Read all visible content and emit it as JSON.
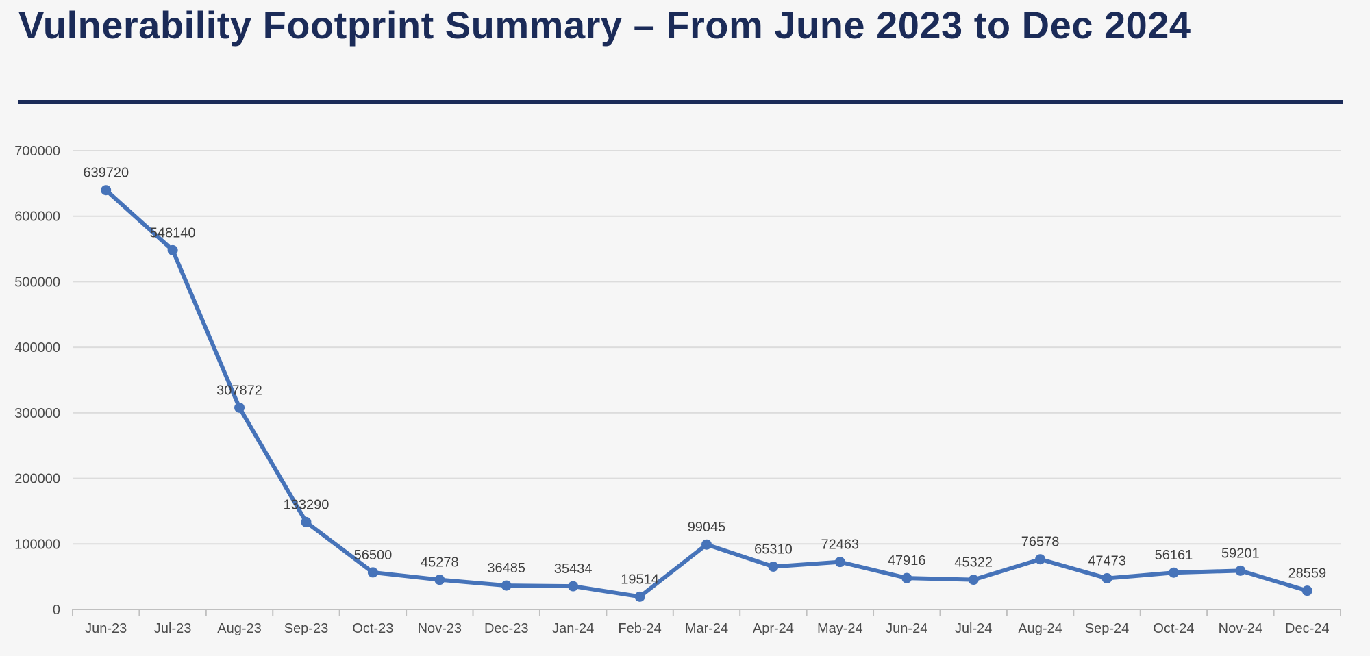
{
  "page": {
    "title": "Vulnerability Footprint Summary – From June 2023 to Dec 2024",
    "colors": {
      "background": "#F6F6F6",
      "title": "#1B2B58",
      "divider": "#1B2B58"
    }
  },
  "chart_data": {
    "type": "line",
    "title": "Vulnerability Footprint Summary – From June 2023 to Dec 2024",
    "categories": [
      "Jun-23",
      "Jul-23",
      "Aug-23",
      "Sep-23",
      "Oct-23",
      "Nov-23",
      "Dec-23",
      "Jan-24",
      "Feb-24",
      "Mar-24",
      "Apr-24",
      "May-24",
      "Jun-24",
      "Jul-24",
      "Aug-24",
      "Sep-24",
      "Oct-24",
      "Nov-24",
      "Dec-24"
    ],
    "values": [
      639720,
      548140,
      307872,
      133290,
      56500,
      45278,
      36485,
      35434,
      19514,
      99045,
      65310,
      72463,
      47916,
      45322,
      76578,
      47473,
      56161,
      59201,
      28559
    ],
    "xlabel": "",
    "ylabel": "",
    "ylim": [
      0,
      700000
    ],
    "y_tick_interval": 100000,
    "y_tick_labels": [
      "0",
      "100000",
      "200000",
      "300000",
      "400000",
      "500000",
      "600000",
      "700000"
    ],
    "grid": true,
    "legend": "none",
    "data_labels": true,
    "marker": "circle",
    "colors": {
      "line": "#4673B9",
      "marker": "#4673B9",
      "gridline": "#DCDCDC",
      "axis_line": "#C0C0C0",
      "axis_text": "#4A4A4A",
      "data_label_text": "#3F3F3F"
    }
  }
}
